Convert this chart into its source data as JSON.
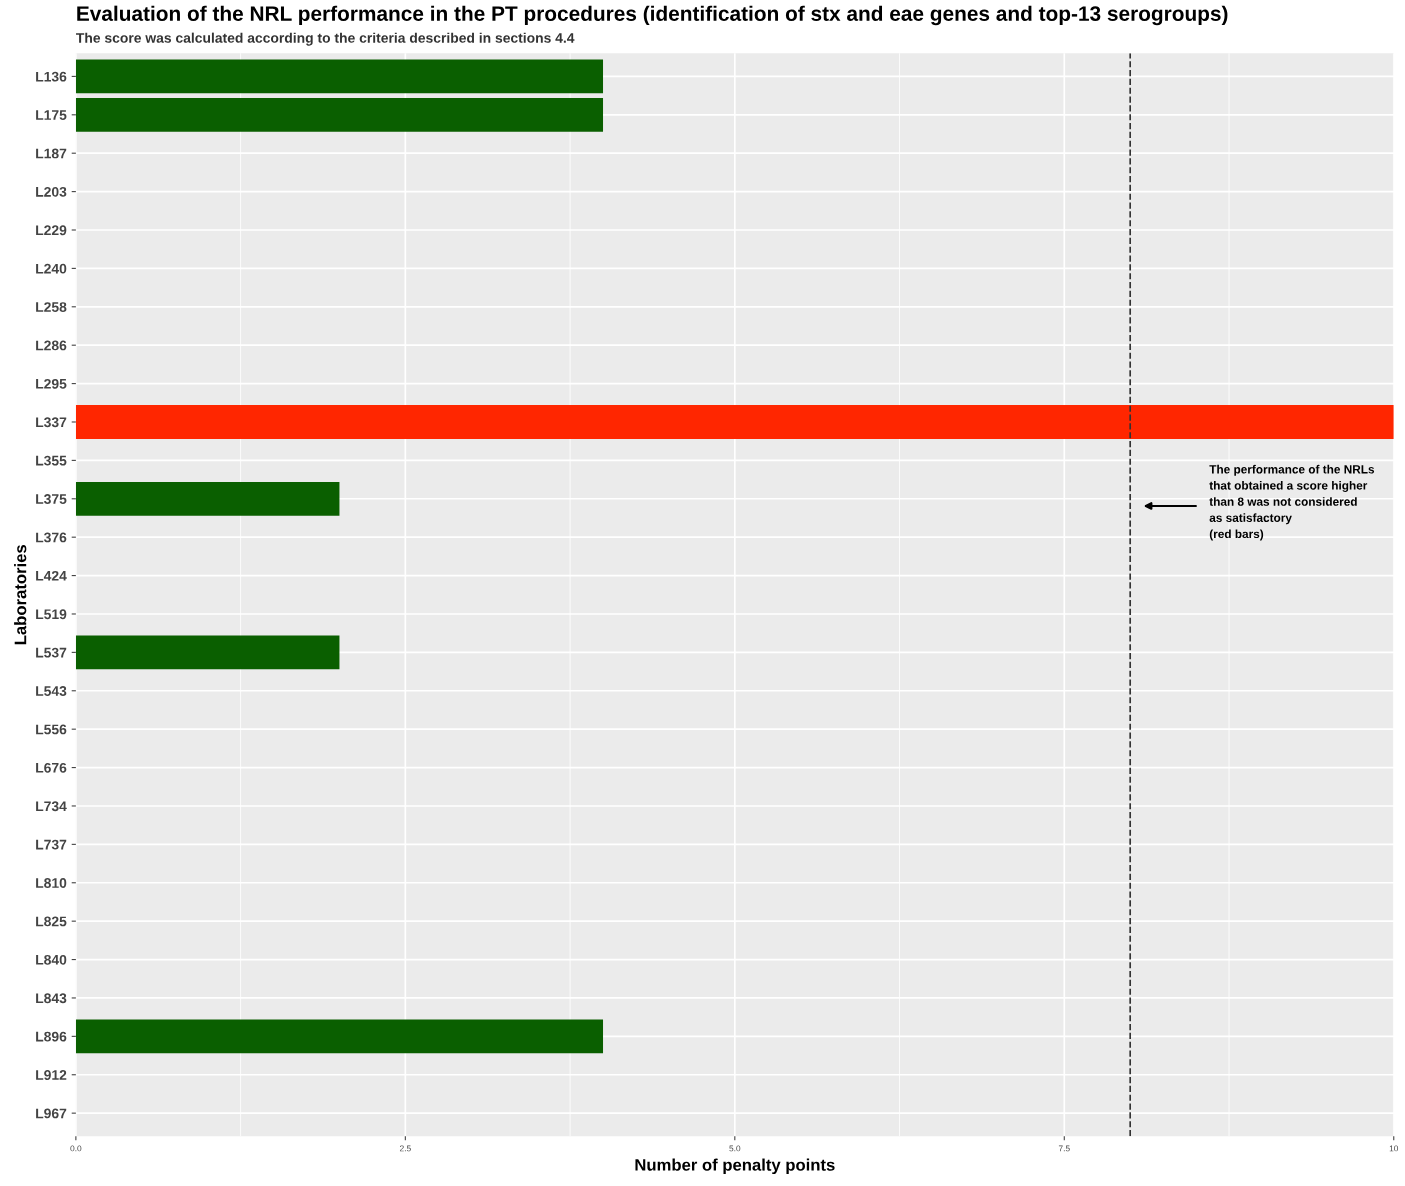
{
  "chart_data": {
    "type": "bar",
    "orientation": "horizontal",
    "title": "Evaluation of the NRL performance in the PT procedures (identification of stx and eae genes and top-13 serogroups)",
    "subtitle": "The score was calculated according to the criteria described in sections 4.4",
    "xlabel": "Number of penalty points",
    "ylabel": "Laboratories",
    "categories": [
      "L136",
      "L175",
      "L187",
      "L203",
      "L229",
      "L240",
      "L258",
      "L286",
      "L295",
      "L337",
      "L355",
      "L375",
      "L376",
      "L424",
      "L519",
      "L537",
      "L543",
      "L556",
      "L676",
      "L734",
      "L737",
      "L810",
      "L825",
      "L840",
      "L843",
      "L896",
      "L912",
      "L967"
    ],
    "values": [
      4,
      4,
      0,
      0,
      0,
      0,
      0,
      0,
      0,
      10,
      0,
      2,
      0,
      0,
      0,
      2,
      0,
      0,
      0,
      0,
      0,
      0,
      0,
      0,
      0,
      4,
      0,
      0
    ],
    "colors": [
      "#0a5f00",
      "#0a5f00",
      "#0a5f00",
      "#0a5f00",
      "#0a5f00",
      "#0a5f00",
      "#0a5f00",
      "#0a5f00",
      "#0a5f00",
      "#ff2600",
      "#0a5f00",
      "#0a5f00",
      "#0a5f00",
      "#0a5f00",
      "#0a5f00",
      "#0a5f00",
      "#0a5f00",
      "#0a5f00",
      "#0a5f00",
      "#0a5f00",
      "#0a5f00",
      "#0a5f00",
      "#0a5f00",
      "#0a5f00",
      "#0a5f00",
      "#0a5f00",
      "#0a5f00",
      "#0a5f00"
    ],
    "xlim": [
      0,
      10
    ],
    "xticks": [
      {
        "value": 0,
        "label": "0.0"
      },
      2.5,
      {
        "value": 5,
        "label": "5.0"
      },
      7.5,
      10
    ],
    "ref_lines": [
      {
        "axis": "x",
        "value": 8,
        "color": "#333333",
        "line_style": "dashed"
      }
    ],
    "annotations": [
      "The performance of the NRLs\nthat obtained a score higher\nthan 8 was not considered\nas satisfactory\n(red bars)"
    ],
    "grid": true,
    "legend": false
  }
}
